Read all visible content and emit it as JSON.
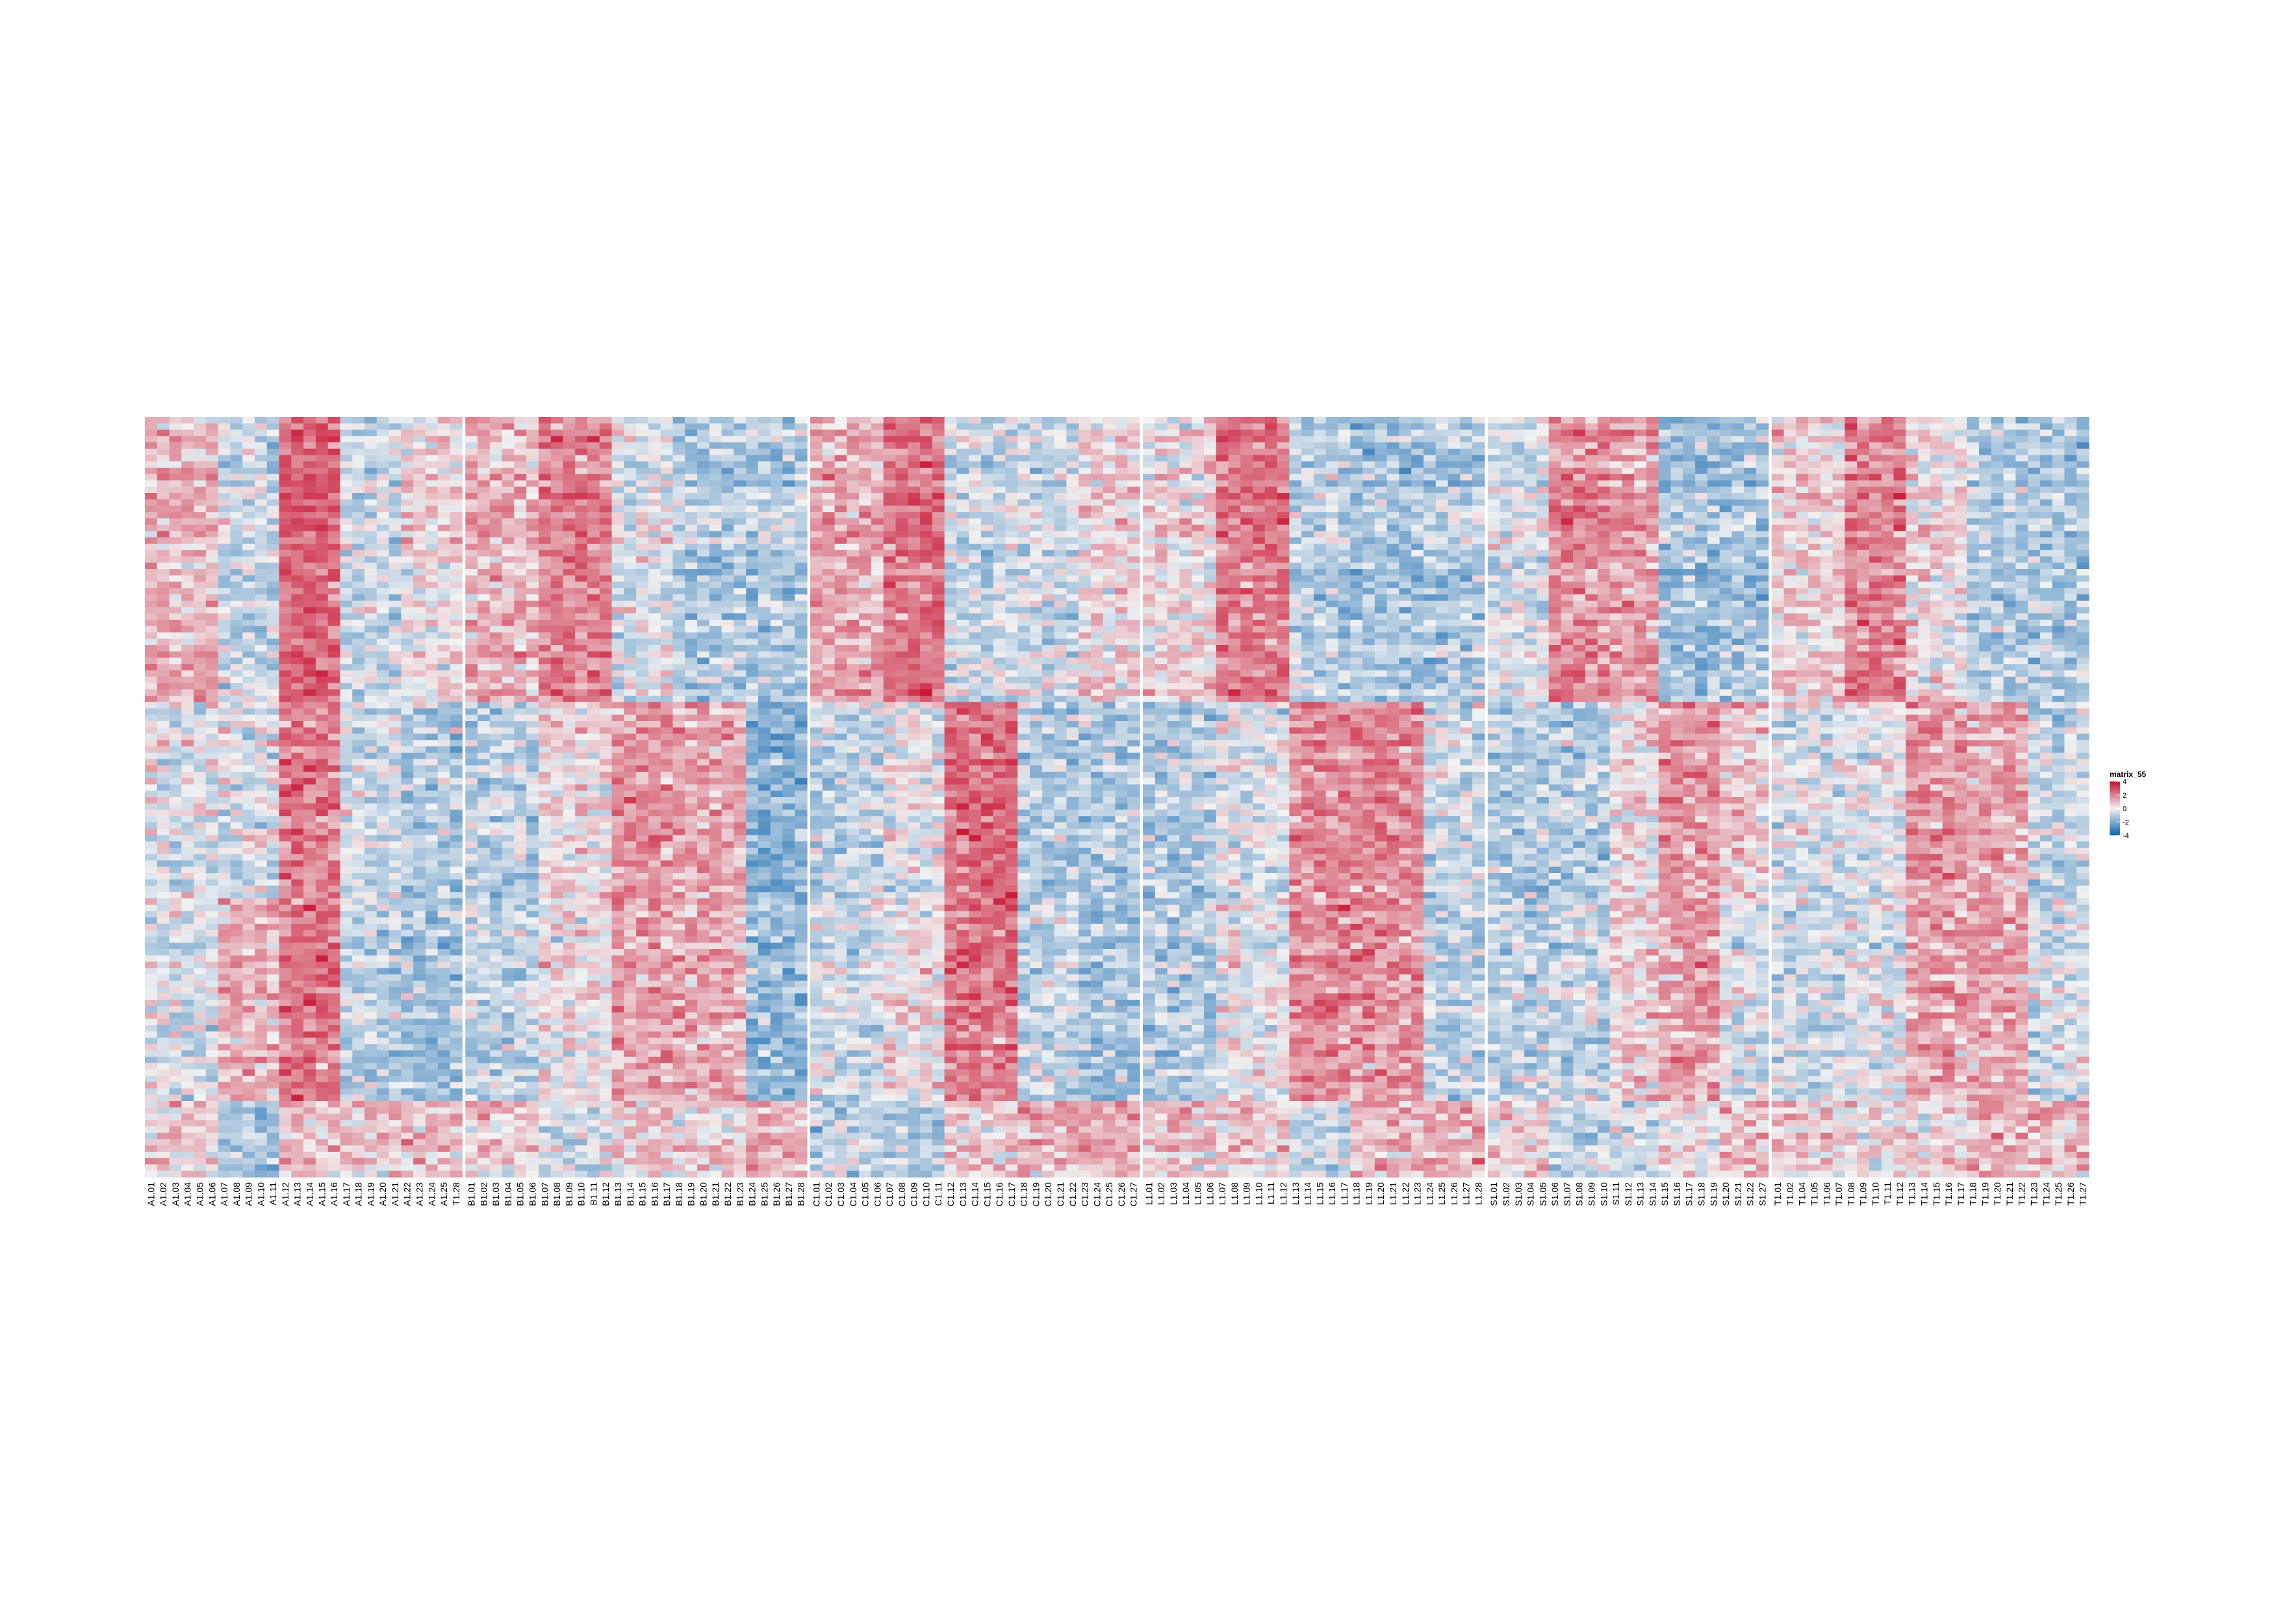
{
  "chart_data": {
    "type": "heatmap",
    "title": "",
    "xlabel": "",
    "ylabel": "",
    "n_rows": 120,
    "value_range": [
      -4,
      4
    ],
    "colorscale": {
      "low": "#0b63ae",
      "mid": "#f2f2f2",
      "high": "#c8102e"
    },
    "legend": {
      "title": "matrix_55",
      "ticks": [
        "4",
        "2",
        "0",
        "-2",
        "-4"
      ],
      "values": [
        4,
        2,
        0,
        -2,
        -4
      ],
      "placement": "right"
    },
    "row_clusters": [
      {
        "rows": [
          0,
          45
        ]
      },
      {
        "rows": [
          45,
          76
        ]
      },
      {
        "rows": [
          76,
          108
        ]
      },
      {
        "rows": [
          108,
          120
        ]
      }
    ],
    "column_groups": [
      {
        "group": "A",
        "columns": [
          "A1.01",
          "A1.02",
          "A1.03",
          "A1.04",
          "A1.05",
          "A1.06",
          "A1.07",
          "A1.08",
          "A1.09",
          "A1.10",
          "A1.11",
          "A1.12",
          "A1.13",
          "A1.14",
          "A1.15",
          "A1.16",
          "A1.17",
          "A1.18",
          "A1.19",
          "A1.20",
          "A1.21",
          "A1.22",
          "A1.23",
          "A1.24",
          "A1.25",
          "T1.28"
        ],
        "pattern": [
          [
            1.0,
            -0.5,
            2.5,
            -0.5,
            0.3
          ],
          [
            -0.3,
            -0.3,
            2.0,
            -0.5,
            -1.0
          ],
          [
            -0.3,
            1.0,
            2.2,
            -0.8,
            -1.2
          ],
          [
            0.5,
            -1.2,
            0.8,
            0.5,
            0.8
          ]
        ]
      },
      {
        "group": "B",
        "columns": [
          "B1.01",
          "B1.02",
          "B1.03",
          "B1.04",
          "B1.05",
          "B1.06",
          "B1.07",
          "B1.08",
          "B1.09",
          "B1.10",
          "B1.11",
          "B1.12",
          "B1.13",
          "B1.14",
          "B1.15",
          "B1.16",
          "B1.17",
          "B1.18",
          "B1.19",
          "B1.20",
          "B1.21",
          "B1.22",
          "B1.23",
          "B1.24",
          "B1.25",
          "B1.26",
          "B1.27",
          "B1.28"
        ],
        "pattern": [
          [
            1.0,
            2.0,
            -0.2,
            -1.0,
            -1.0
          ],
          [
            -0.8,
            0.4,
            1.5,
            1.3,
            -1.8
          ],
          [
            -0.8,
            0.2,
            1.4,
            1.1,
            -1.5
          ],
          [
            0.5,
            -0.5,
            0.6,
            0.5,
            1.2
          ]
        ]
      },
      {
        "group": "C",
        "columns": [
          "C1.01",
          "C1.02",
          "C1.03",
          "C1.04",
          "C1.05",
          "C1.06",
          "C1.07",
          "C1.08",
          "C1.09",
          "C1.10",
          "C1.11",
          "C1.12",
          "C1.13",
          "C1.14",
          "C1.15",
          "C1.16",
          "C1.17",
          "C1.18",
          "C1.19",
          "C1.20",
          "C1.21",
          "C1.22",
          "C1.23",
          "C1.24",
          "C1.25",
          "C1.26",
          "C1.27"
        ],
        "pattern": [
          [
            1.2,
            2.3,
            -0.5,
            -0.5,
            0.4
          ],
          [
            -0.8,
            0.0,
            2.4,
            -1.0,
            -1.0
          ],
          [
            -0.5,
            0.2,
            2.2,
            -0.7,
            -1.2
          ],
          [
            -0.8,
            -1.0,
            0.6,
            1.0,
            1.2
          ]
        ]
      },
      {
        "group": "L",
        "columns": [
          "L1.01",
          "L1.02",
          "L1.03",
          "L1.04",
          "L1.05",
          "L1.06",
          "L1.07",
          "L1.08",
          "L1.09",
          "L1.10",
          "L1.11",
          "L1.12",
          "L1.13",
          "L1.14",
          "L1.15",
          "L1.16",
          "L1.17",
          "L1.18",
          "L1.19",
          "L1.20",
          "L1.21",
          "L1.22",
          "L1.23",
          "L1.24",
          "L1.25",
          "L1.26",
          "L1.27",
          "L1.28"
        ],
        "pattern": [
          [
            0.3,
            2.2,
            -0.8,
            -1.2,
            -1.0
          ],
          [
            -1.0,
            -0.3,
            1.8,
            1.8,
            -0.5
          ],
          [
            -1.0,
            0.0,
            1.8,
            1.6,
            -0.8
          ],
          [
            0.8,
            0.5,
            -0.5,
            0.8,
            1.2
          ]
        ]
      },
      {
        "group": "S",
        "columns": [
          "S1.01",
          "S1.02",
          "S1.03",
          "S1.04",
          "S1.05",
          "S1.06",
          "S1.07",
          "S1.08",
          "S1.09",
          "S1.10",
          "S1.11",
          "S1.12",
          "S1.13",
          "S1.14",
          "S1.15",
          "S1.16",
          "S1.17",
          "S1.18",
          "S1.19",
          "S1.20",
          "S1.21",
          "S1.22",
          "S1.27"
        ],
        "pattern": [
          [
            -0.3,
            1.8,
            1.4,
            -1.2,
            -1.2
          ],
          [
            -1.0,
            -1.0,
            0.2,
            1.6,
            0.5
          ],
          [
            -0.8,
            -0.6,
            0.6,
            1.4,
            -0.3
          ],
          [
            0.5,
            -0.8,
            -0.5,
            0.2,
            0.8
          ]
        ]
      },
      {
        "group": "T",
        "columns": [
          "T1.01",
          "T1.02",
          "T1.04",
          "T1.05",
          "T1.06",
          "T1.07",
          "T1.08",
          "T1.09",
          "T1.10",
          "T1.11",
          "T1.12",
          "T1.13",
          "T1.14",
          "T1.15",
          "T1.16",
          "T1.17",
          "T1.18",
          "T1.19",
          "T1.20",
          "T1.21",
          "T1.22",
          "T1.23",
          "T1.24",
          "T1.25",
          "T1.26",
          "T1.27"
        ],
        "pattern": [
          [
            0.5,
            2.0,
            0.3,
            -1.0,
            -1.0
          ],
          [
            -0.3,
            -0.2,
            1.5,
            1.2,
            -0.6
          ],
          [
            -0.5,
            -0.2,
            1.3,
            1.4,
            -0.4
          ],
          [
            0.5,
            0.2,
            0.3,
            1.0,
            0.8
          ]
        ]
      }
    ]
  }
}
